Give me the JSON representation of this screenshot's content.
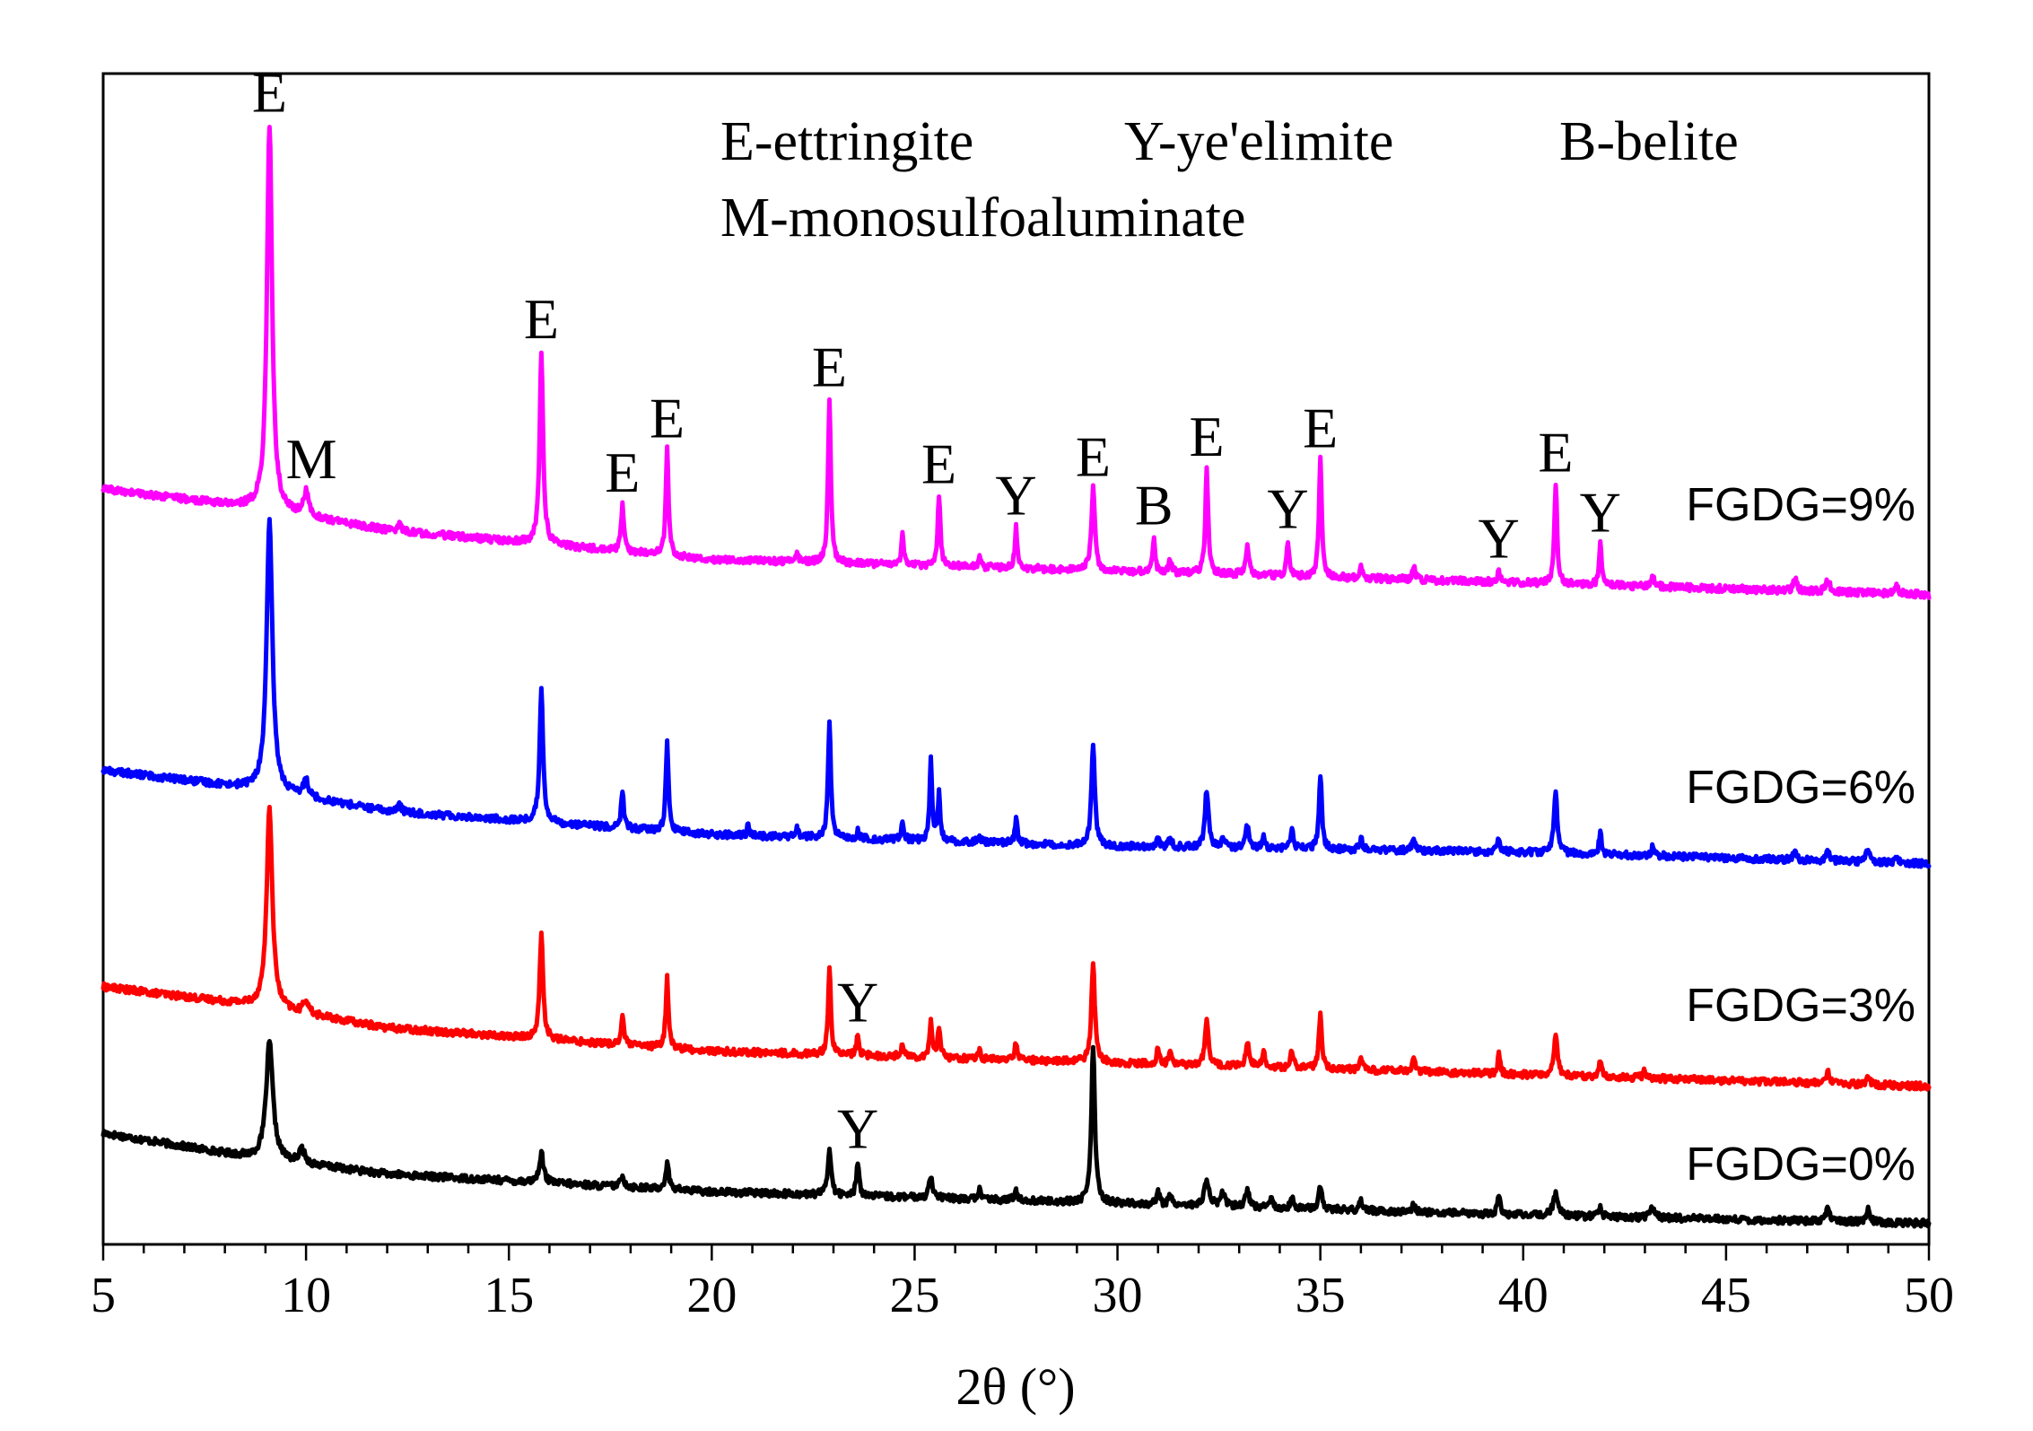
{
  "chart_data": {
    "type": "line",
    "title": "",
    "xlabel": "2θ (°)",
    "ylabel": "",
    "xlim": [
      5,
      50
    ],
    "ylim": [
      0,
      1
    ],
    "x_ticks": [
      "5",
      "10",
      "15",
      "20",
      "25",
      "30",
      "35",
      "40",
      "45",
      "50"
    ],
    "legend": [
      "E-ettringite",
      "Y-ye'elimite",
      "B-belite",
      "M-monosulfoaluminate"
    ],
    "series": [
      {
        "name": "FGDG=0%",
        "color": "#000000",
        "baseline": [
          [
            5,
            0.095
          ],
          [
            8.5,
            0.075
          ],
          [
            12,
            0.06
          ],
          [
            20,
            0.045
          ],
          [
            30,
            0.035
          ],
          [
            40,
            0.025
          ],
          [
            50,
            0.018
          ]
        ],
        "peaks": [
          [
            9.1,
            0.1,
            0.2
          ],
          [
            9.9,
            0.012,
            0.15
          ],
          [
            15.8,
            0.025,
            0.12
          ],
          [
            17.8,
            0.01,
            0.1
          ],
          [
            18.9,
            0.022,
            0.1
          ],
          [
            22.9,
            0.04,
            0.1
          ],
          [
            23.6,
            0.03,
            0.08
          ],
          [
            25.4,
            0.02,
            0.1
          ],
          [
            26.6,
            0.012,
            0.06
          ],
          [
            27.5,
            0.008,
            0.1
          ],
          [
            29.4,
            0.135,
            0.1
          ],
          [
            31.0,
            0.012,
            0.08
          ],
          [
            31.3,
            0.01,
            0.08
          ],
          [
            32.2,
            0.02,
            0.15
          ],
          [
            32.6,
            0.012,
            0.12
          ],
          [
            33.2,
            0.014,
            0.12
          ],
          [
            33.8,
            0.008,
            0.1
          ],
          [
            34.3,
            0.01,
            0.08
          ],
          [
            35.0,
            0.02,
            0.1
          ],
          [
            36.0,
            0.01,
            0.08
          ],
          [
            37.3,
            0.006,
            0.08
          ],
          [
            39.4,
            0.016,
            0.08
          ],
          [
            40.8,
            0.018,
            0.15
          ],
          [
            41.9,
            0.008,
            0.08
          ],
          [
            43.2,
            0.01,
            0.12
          ],
          [
            47.5,
            0.01,
            0.12
          ],
          [
            48.5,
            0.012,
            0.1
          ]
        ],
        "label": "FGDG=0%"
      },
      {
        "name": "FGDG=3%",
        "color": "#ff0000",
        "baseline": [
          [
            5,
            0.22
          ],
          [
            8.5,
            0.205
          ],
          [
            12,
            0.185
          ],
          [
            20,
            0.165
          ],
          [
            30,
            0.155
          ],
          [
            40,
            0.145
          ],
          [
            50,
            0.135
          ]
        ],
        "peaks": [
          [
            9.1,
            0.17,
            0.17
          ],
          [
            10.0,
            0.012,
            0.15
          ],
          [
            15.8,
            0.09,
            0.1
          ],
          [
            17.8,
            0.025,
            0.08
          ],
          [
            18.9,
            0.06,
            0.08
          ],
          [
            22.9,
            0.075,
            0.08
          ],
          [
            23.6,
            0.018,
            0.07
          ],
          [
            24.7,
            0.012,
            0.08
          ],
          [
            25.4,
            0.03,
            0.08
          ],
          [
            25.6,
            0.025,
            0.08
          ],
          [
            26.6,
            0.008,
            0.06
          ],
          [
            27.5,
            0.015,
            0.08
          ],
          [
            29.4,
            0.085,
            0.1
          ],
          [
            31.0,
            0.014,
            0.07
          ],
          [
            31.3,
            0.014,
            0.07
          ],
          [
            32.2,
            0.04,
            0.1
          ],
          [
            33.2,
            0.02,
            0.1
          ],
          [
            33.6,
            0.012,
            0.08
          ],
          [
            34.3,
            0.015,
            0.08
          ],
          [
            35.0,
            0.05,
            0.08
          ],
          [
            36.0,
            0.01,
            0.08
          ],
          [
            37.3,
            0.01,
            0.1
          ],
          [
            39.4,
            0.017,
            0.07
          ],
          [
            40.8,
            0.035,
            0.1
          ],
          [
            41.9,
            0.015,
            0.07
          ],
          [
            43.0,
            0.006,
            0.1
          ],
          [
            47.5,
            0.01,
            0.1
          ],
          [
            48.5,
            0.007,
            0.1
          ]
        ],
        "label": "FGDG=3%"
      },
      {
        "name": "FGDG=6%",
        "color": "#0000ff",
        "baseline": [
          [
            5,
            0.405
          ],
          [
            8.5,
            0.39
          ],
          [
            12,
            0.37
          ],
          [
            20,
            0.35
          ],
          [
            30,
            0.34
          ],
          [
            40,
            0.335
          ],
          [
            50,
            0.325
          ]
        ],
        "peaks": [
          [
            9.1,
            0.23,
            0.17
          ],
          [
            10.0,
            0.015,
            0.15
          ],
          [
            12.3,
            0.006,
            0.12
          ],
          [
            15.8,
            0.115,
            0.1
          ],
          [
            17.8,
            0.03,
            0.08
          ],
          [
            18.9,
            0.075,
            0.08
          ],
          [
            20.9,
            0.012,
            0.05
          ],
          [
            22.1,
            0.008,
            0.07
          ],
          [
            22.9,
            0.1,
            0.08
          ],
          [
            23.6,
            0.008,
            0.06
          ],
          [
            24.7,
            0.015,
            0.08
          ],
          [
            25.4,
            0.07,
            0.07
          ],
          [
            25.6,
            0.04,
            0.07
          ],
          [
            26.6,
            0.008,
            0.06
          ],
          [
            27.5,
            0.022,
            0.07
          ],
          [
            29.4,
            0.085,
            0.1
          ],
          [
            31.0,
            0.01,
            0.07
          ],
          [
            31.3,
            0.01,
            0.07
          ],
          [
            32.2,
            0.05,
            0.1
          ],
          [
            32.6,
            0.01,
            0.08
          ],
          [
            33.2,
            0.02,
            0.1
          ],
          [
            33.6,
            0.01,
            0.08
          ],
          [
            34.3,
            0.018,
            0.08
          ],
          [
            35.0,
            0.065,
            0.08
          ],
          [
            36.0,
            0.01,
            0.08
          ],
          [
            37.3,
            0.01,
            0.1
          ],
          [
            39.4,
            0.012,
            0.08
          ],
          [
            40.8,
            0.05,
            0.1
          ],
          [
            41.9,
            0.02,
            0.07
          ],
          [
            43.2,
            0.008,
            0.1
          ],
          [
            46.7,
            0.007,
            0.1
          ],
          [
            47.5,
            0.01,
            0.1
          ],
          [
            48.5,
            0.012,
            0.1
          ],
          [
            49.2,
            0.006,
            0.1
          ]
        ],
        "label": "FGDG=6%"
      },
      {
        "name": "FGDG=9%",
        "color": "#ff00ff",
        "baseline": [
          [
            5,
            0.645
          ],
          [
            8.5,
            0.63
          ],
          [
            12,
            0.61
          ],
          [
            20,
            0.585
          ],
          [
            30,
            0.575
          ],
          [
            40,
            0.565
          ],
          [
            50,
            0.555
          ]
        ],
        "peaks": [
          [
            9.1,
            0.33,
            0.15
          ],
          [
            10.0,
            0.02,
            0.15
          ],
          [
            12.3,
            0.006,
            0.12
          ],
          [
            15.8,
            0.165,
            0.1
          ],
          [
            17.8,
            0.04,
            0.08
          ],
          [
            18.9,
            0.09,
            0.08
          ],
          [
            22.1,
            0.01,
            0.07
          ],
          [
            22.9,
            0.14,
            0.08
          ],
          [
            24.7,
            0.025,
            0.07
          ],
          [
            25.6,
            0.06,
            0.08
          ],
          [
            26.6,
            0.01,
            0.06
          ],
          [
            27.5,
            0.035,
            0.07
          ],
          [
            29.4,
            0.07,
            0.1
          ],
          [
            30.9,
            0.03,
            0.07
          ],
          [
            31.3,
            0.012,
            0.07
          ],
          [
            32.2,
            0.09,
            0.08
          ],
          [
            33.2,
            0.025,
            0.1
          ],
          [
            34.2,
            0.03,
            0.07
          ],
          [
            35.0,
            0.1,
            0.08
          ],
          [
            36.0,
            0.01,
            0.08
          ],
          [
            37.3,
            0.012,
            0.08
          ],
          [
            39.4,
            0.01,
            0.08
          ],
          [
            40.8,
            0.085,
            0.08
          ],
          [
            41.9,
            0.035,
            0.07
          ],
          [
            43.2,
            0.008,
            0.1
          ],
          [
            46.7,
            0.01,
            0.1
          ],
          [
            47.5,
            0.01,
            0.12
          ],
          [
            49.2,
            0.007,
            0.1
          ]
        ],
        "label": "FGDG=9%"
      }
    ],
    "peak_annotations": [
      {
        "series": "FGDG=9%",
        "x": 9.1,
        "text": "E"
      },
      {
        "series": "FGDG=9%",
        "x": 10.0,
        "text": "M"
      },
      {
        "series": "FGDG=9%",
        "x": 15.8,
        "text": "E"
      },
      {
        "series": "FGDG=9%",
        "x": 17.8,
        "text": "E"
      },
      {
        "series": "FGDG=9%",
        "x": 18.9,
        "text": "E"
      },
      {
        "series": "FGDG=9%",
        "x": 22.9,
        "text": "E"
      },
      {
        "series": "FGDG=9%",
        "x": 25.6,
        "text": "E"
      },
      {
        "series": "FGDG=9%",
        "x": 27.5,
        "text": "Y"
      },
      {
        "series": "FGDG=9%",
        "x": 29.4,
        "text": "E"
      },
      {
        "series": "FGDG=9%",
        "x": 30.9,
        "text": "B"
      },
      {
        "series": "FGDG=9%",
        "x": 32.2,
        "text": "E"
      },
      {
        "series": "FGDG=9%",
        "x": 34.2,
        "text": "Y"
      },
      {
        "series": "FGDG=9%",
        "x": 35.0,
        "text": "E"
      },
      {
        "series": "FGDG=9%",
        "x": 39.4,
        "text": "Y"
      },
      {
        "series": "FGDG=9%",
        "x": 40.8,
        "text": "E"
      },
      {
        "series": "FGDG=9%",
        "x": 41.9,
        "text": "Y"
      },
      {
        "series": "FGDG=3%",
        "x": 23.6,
        "text": "Y"
      },
      {
        "series": "FGDG=0%",
        "x": 23.6,
        "text": "Y"
      }
    ]
  }
}
